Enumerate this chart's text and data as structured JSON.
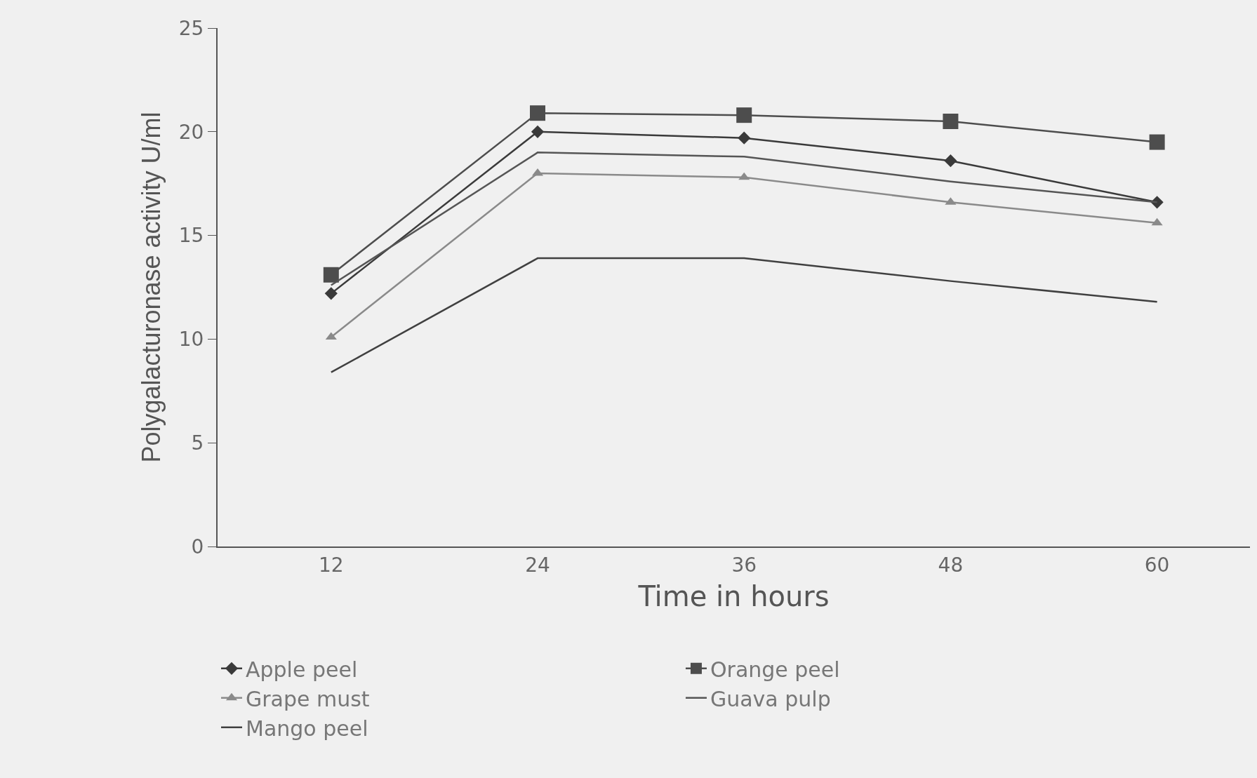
{
  "chart_data": {
    "type": "line",
    "xlabel": "Time in hours",
    "ylabel": "Polygalacturonase activity U/ml",
    "categories": [
      "12",
      "24",
      "36",
      "48",
      "60"
    ],
    "ylim": [
      0,
      25
    ],
    "yticks": [
      0,
      5,
      10,
      15,
      20,
      25
    ],
    "grid": false,
    "legend": "bottom",
    "series": [
      {
        "name": "Apple peel",
        "color": "#3a3a3a",
        "marker": "diamond",
        "values": [
          12.2,
          20.0,
          19.7,
          18.6,
          16.6
        ]
      },
      {
        "name": "Orange peel",
        "color": "#4d4d4d",
        "marker": "square",
        "values": [
          13.1,
          20.9,
          20.8,
          20.5,
          19.5
        ]
      },
      {
        "name": "Grape must",
        "color": "#8a8a8a",
        "marker": "triangle",
        "values": [
          10.1,
          18.0,
          17.8,
          16.6,
          15.6
        ]
      },
      {
        "name": "Guava pulp",
        "color": "#555555",
        "marker": "none",
        "values": [
          12.6,
          19.0,
          18.8,
          17.6,
          16.6
        ]
      },
      {
        "name": "Mango peel",
        "color": "#404040",
        "marker": "none",
        "values": [
          8.4,
          13.9,
          13.9,
          12.8,
          11.8
        ]
      }
    ]
  }
}
